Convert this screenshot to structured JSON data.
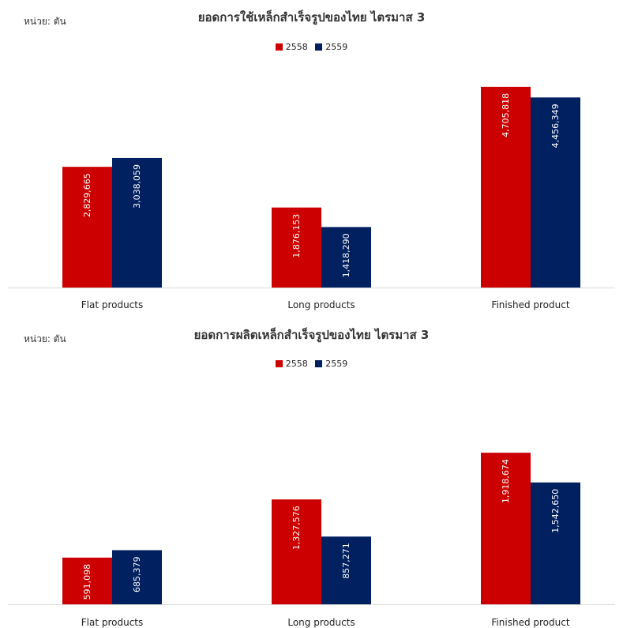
{
  "legend_colors": [
    "#cc0000",
    "#002060"
  ],
  "chart_data": [
    {
      "type": "bar",
      "unit_label": "หน่วย: ตัน",
      "title": "ยอดการใช้เหล็กสำเร็จรูปของไทย ไตรมาส 3",
      "categories": [
        "Flat products",
        "Long products",
        "Finished product"
      ],
      "series": [
        {
          "name": "2558",
          "values": [
            2829665,
            1876153,
            4705818
          ],
          "labels": [
            "2,829,665",
            "1,876,153",
            "4,705,818"
          ]
        },
        {
          "name": "2559",
          "values": [
            3038059,
            1418290,
            4456349
          ],
          "labels": [
            "3,038,059",
            "1,418,290",
            "4,456,349"
          ]
        }
      ],
      "ylim": [
        0,
        5000000
      ],
      "grid": false,
      "legend_position": "top"
    },
    {
      "type": "bar",
      "unit_label": "หน่วย: ตัน",
      "title": "ยอดการผลิตเหล็กสำเร็จรูปของไทย ไตรมาส 3",
      "categories": [
        "Flat products",
        "Long products",
        "Finished product"
      ],
      "series": [
        {
          "name": "2558",
          "values": [
            591098,
            1327576,
            1918674
          ],
          "labels": [
            "591,098",
            "1,327,576",
            "1,918,674"
          ]
        },
        {
          "name": "2559",
          "values": [
            685379,
            857271,
            1542650
          ],
          "labels": [
            "685,379",
            "857,271",
            "1,542,650"
          ]
        }
      ],
      "ylim": [
        0,
        2300000
      ],
      "grid": false,
      "legend_position": "top"
    }
  ]
}
